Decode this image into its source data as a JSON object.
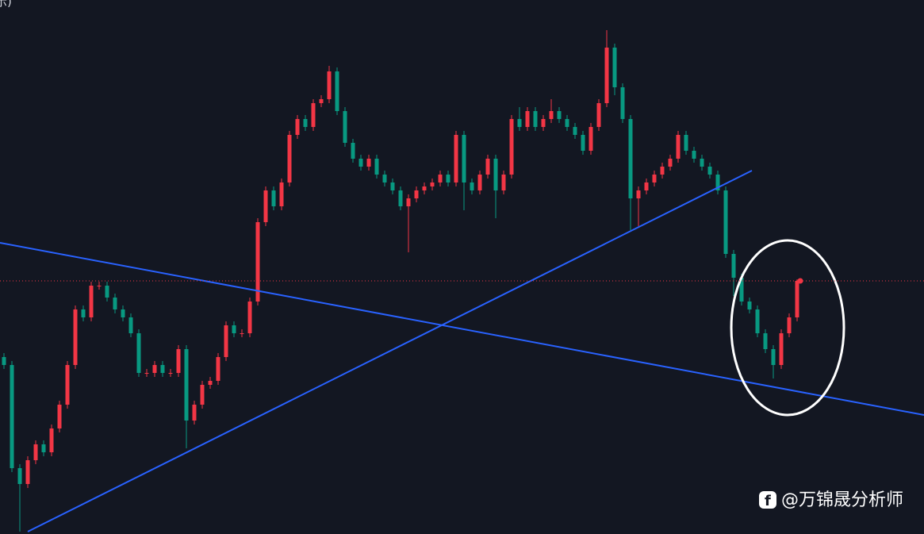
{
  "chart_data": {
    "type": "candlestick",
    "corner_label": "示)",
    "watermark": "@万锦晟分析师",
    "up_color": "#f23645",
    "down_color": "#089981",
    "ylim": [
      0,
      673
    ],
    "open": [
      223,
      213,
      83,
      63,
      93,
      113,
      103,
      133,
      163,
      213,
      283,
      273,
      313,
      313,
      298,
      283,
      273,
      253,
      203,
      203,
      213,
      203,
      203,
      233,
      143,
      163,
      188,
      193,
      223,
      263,
      253,
      253,
      293,
      393,
      433,
      413,
      443,
      503,
      523,
      513,
      543,
      548,
      583,
      533,
      493,
      473,
      463,
      473,
      453,
      443,
      433,
      413,
      423,
      433,
      438,
      443,
      453,
      443,
      503,
      443,
      433,
      453,
      473,
      433,
      453,
      523,
      513,
      533,
      513,
      523,
      533,
      523,
      513,
      503,
      483,
      513,
      543,
      613,
      563,
      523,
      423,
      433,
      443,
      453,
      463,
      473,
      503,
      483,
      473,
      463,
      453,
      433,
      353,
      323,
      293,
      283,
      253,
      233,
      213,
      253,
      273
    ],
    "high": [
      228,
      218,
      88,
      98,
      118,
      118,
      138,
      168,
      218,
      288,
      288,
      318,
      318,
      318,
      303,
      288,
      278,
      258,
      208,
      218,
      218,
      208,
      238,
      238,
      168,
      193,
      198,
      228,
      268,
      268,
      258,
      298,
      398,
      438,
      438,
      448,
      508,
      528,
      528,
      548,
      553,
      590,
      588,
      538,
      498,
      478,
      478,
      478,
      458,
      448,
      438,
      428,
      438,
      443,
      448,
      458,
      458,
      508,
      508,
      448,
      458,
      478,
      478,
      458,
      528,
      538,
      538,
      538,
      528,
      548,
      538,
      528,
      518,
      508,
      518,
      548,
      635,
      618,
      568,
      528,
      438,
      448,
      458,
      468,
      478,
      508,
      508,
      488,
      478,
      468,
      458,
      438,
      358,
      328,
      298,
      288,
      258,
      238,
      258,
      278,
      321
    ],
    "low": [
      208,
      78,
      3,
      58,
      88,
      98,
      98,
      128,
      158,
      208,
      268,
      268,
      308,
      293,
      278,
      268,
      248,
      198,
      198,
      198,
      198,
      198,
      198,
      108,
      138,
      158,
      183,
      188,
      218,
      248,
      248,
      248,
      288,
      388,
      408,
      408,
      438,
      498,
      508,
      508,
      538,
      543,
      528,
      488,
      468,
      458,
      458,
      448,
      438,
      428,
      408,
      355,
      418,
      428,
      433,
      438,
      438,
      438,
      408,
      428,
      428,
      448,
      398,
      428,
      448,
      508,
      508,
      508,
      508,
      518,
      518,
      508,
      498,
      478,
      478,
      508,
      538,
      553,
      518,
      383,
      388,
      428,
      438,
      448,
      458,
      468,
      478,
      468,
      458,
      448,
      428,
      348,
      300,
      288,
      278,
      248,
      228,
      196,
      208,
      248,
      268
    ],
    "close": [
      213,
      83,
      63,
      93,
      113,
      103,
      133,
      163,
      213,
      283,
      273,
      313,
      313,
      298,
      283,
      273,
      253,
      203,
      203,
      213,
      203,
      203,
      233,
      143,
      163,
      188,
      193,
      223,
      263,
      253,
      253,
      293,
      393,
      433,
      413,
      443,
      503,
      523,
      513,
      543,
      548,
      583,
      533,
      493,
      473,
      463,
      473,
      453,
      443,
      433,
      413,
      423,
      433,
      438,
      443,
      453,
      443,
      503,
      443,
      433,
      453,
      473,
      433,
      453,
      523,
      513,
      533,
      513,
      523,
      533,
      523,
      513,
      503,
      483,
      513,
      543,
      613,
      563,
      523,
      423,
      433,
      443,
      453,
      463,
      473,
      503,
      483,
      473,
      463,
      453,
      433,
      353,
      323,
      293,
      283,
      253,
      233,
      213,
      253,
      273,
      319
    ]
  }
}
